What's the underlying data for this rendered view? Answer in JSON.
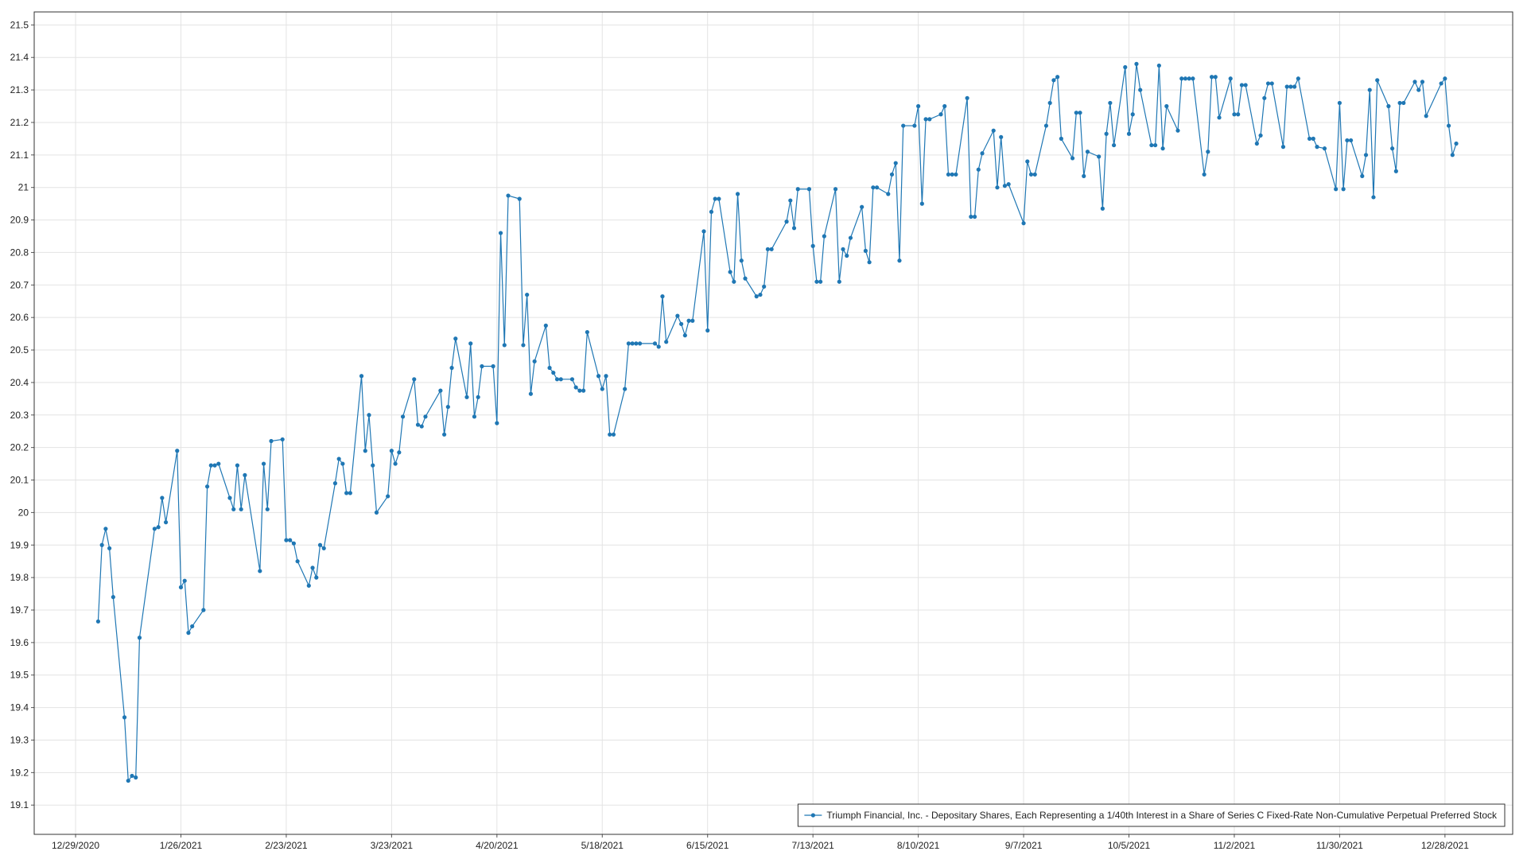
{
  "chart_data": {
    "type": "line",
    "x": [
      "1/4/2021",
      "1/5/2021",
      "1/6/2021",
      "1/7/2021",
      "1/8/2021",
      "1/11/2021",
      "1/12/2021",
      "1/13/2021",
      "1/14/2021",
      "1/15/2021",
      "1/19/2021",
      "1/20/2021",
      "1/21/2021",
      "1/22/2021",
      "1/25/2021",
      "1/26/2021",
      "1/27/2021",
      "1/28/2021",
      "1/29/2021",
      "2/1/2021",
      "2/2/2021",
      "2/3/2021",
      "2/4/2021",
      "2/5/2021",
      "2/8/2021",
      "2/9/2021",
      "2/10/2021",
      "2/11/2021",
      "2/12/2021",
      "2/16/2021",
      "2/17/2021",
      "2/18/2021",
      "2/19/2021",
      "2/22/2021",
      "2/23/2021",
      "2/24/2021",
      "2/25/2021",
      "2/26/2021",
      "3/1/2021",
      "3/2/2021",
      "3/3/2021",
      "3/4/2021",
      "3/5/2021",
      "3/8/2021",
      "3/9/2021",
      "3/10/2021",
      "3/11/2021",
      "3/12/2021",
      "3/15/2021",
      "3/16/2021",
      "3/17/2021",
      "3/18/2021",
      "3/19/2021",
      "3/22/2021",
      "3/23/2021",
      "3/24/2021",
      "3/25/2021",
      "3/26/2021",
      "3/29/2021",
      "3/30/2021",
      "3/31/2021",
      "4/1/2021",
      "4/5/2021",
      "4/6/2021",
      "4/7/2021",
      "4/8/2021",
      "4/9/2021",
      "4/12/2021",
      "4/13/2021",
      "4/14/2021",
      "4/15/2021",
      "4/16/2021",
      "4/19/2021",
      "4/20/2021",
      "4/21/2021",
      "4/22/2021",
      "4/23/2021",
      "4/26/2021",
      "4/27/2021",
      "4/28/2021",
      "4/29/2021",
      "4/30/2021",
      "5/3/2021",
      "5/4/2021",
      "5/5/2021",
      "5/6/2021",
      "5/7/2021",
      "5/10/2021",
      "5/11/2021",
      "5/12/2021",
      "5/13/2021",
      "5/14/2021",
      "5/17/2021",
      "5/18/2021",
      "5/19/2021",
      "5/20/2021",
      "5/21/2021",
      "5/24/2021",
      "5/25/2021",
      "5/26/2021",
      "5/27/2021",
      "5/28/2021",
      "6/1/2021",
      "6/2/2021",
      "6/3/2021",
      "6/4/2021",
      "6/7/2021",
      "6/8/2021",
      "6/9/2021",
      "6/10/2021",
      "6/11/2021",
      "6/14/2021",
      "6/15/2021",
      "6/16/2021",
      "6/17/2021",
      "6/18/2021",
      "6/21/2021",
      "6/22/2021",
      "6/23/2021",
      "6/24/2021",
      "6/25/2021",
      "6/28/2021",
      "6/29/2021",
      "6/30/2021",
      "7/1/2021",
      "7/2/2021",
      "7/6/2021",
      "7/7/2021",
      "7/8/2021",
      "7/9/2021",
      "7/12/2021",
      "7/13/2021",
      "7/14/2021",
      "7/15/2021",
      "7/16/2021",
      "7/19/2021",
      "7/20/2021",
      "7/21/2021",
      "7/22/2021",
      "7/23/2021",
      "7/26/2021",
      "7/27/2021",
      "7/28/2021",
      "7/29/2021",
      "7/30/2021",
      "8/2/2021",
      "8/3/2021",
      "8/4/2021",
      "8/5/2021",
      "8/6/2021",
      "8/9/2021",
      "8/10/2021",
      "8/11/2021",
      "8/12/2021",
      "8/13/2021",
      "8/16/2021",
      "8/17/2021",
      "8/18/2021",
      "8/19/2021",
      "8/20/2021",
      "8/23/2021",
      "8/24/2021",
      "8/25/2021",
      "8/26/2021",
      "8/27/2021",
      "8/30/2021",
      "8/31/2021",
      "9/1/2021",
      "9/2/2021",
      "9/3/2021",
      "9/7/2021",
      "9/8/2021",
      "9/9/2021",
      "9/10/2021",
      "9/13/2021",
      "9/14/2021",
      "9/15/2021",
      "9/16/2021",
      "9/17/2021",
      "9/20/2021",
      "9/21/2021",
      "9/22/2021",
      "9/23/2021",
      "9/24/2021",
      "9/27/2021",
      "9/28/2021",
      "9/29/2021",
      "9/30/2021",
      "10/1/2021",
      "10/4/2021",
      "10/5/2021",
      "10/6/2021",
      "10/7/2021",
      "10/8/2021",
      "10/11/2021",
      "10/12/2021",
      "10/13/2021",
      "10/14/2021",
      "10/15/2021",
      "10/18/2021",
      "10/19/2021",
      "10/20/2021",
      "10/21/2021",
      "10/22/2021",
      "10/25/2021",
      "10/26/2021",
      "10/27/2021",
      "10/28/2021",
      "10/29/2021",
      "11/1/2021",
      "11/2/2021",
      "11/3/2021",
      "11/4/2021",
      "11/5/2021",
      "11/8/2021",
      "11/9/2021",
      "11/10/2021",
      "11/11/2021",
      "11/12/2021",
      "11/15/2021",
      "11/16/2021",
      "11/17/2021",
      "11/18/2021",
      "11/19/2021",
      "11/22/2021",
      "11/23/2021",
      "11/24/2021",
      "11/26/2021",
      "11/29/2021",
      "11/30/2021",
      "12/1/2021",
      "12/2/2021",
      "12/3/2021",
      "12/6/2021",
      "12/7/2021",
      "12/8/2021",
      "12/9/2021",
      "12/10/2021",
      "12/13/2021",
      "12/14/2021",
      "12/15/2021",
      "12/16/2021",
      "12/17/2021",
      "12/20/2021",
      "12/21/2021",
      "12/22/2021",
      "12/23/2021",
      "12/27/2021",
      "12/28/2021",
      "12/29/2021",
      "12/30/2021",
      "12/31/2021"
    ],
    "series": [
      {
        "name": "Triumph Financial, Inc. - Depositary Shares, Each Representing a 1/40th Interest in a Share of Series C Fixed-Rate Non-Cumulative Perpetual Preferred Stock",
        "color": "#1f77b4",
        "values": [
          19.665,
          19.9,
          19.95,
          19.89,
          19.74,
          19.37,
          19.175,
          19.19,
          19.185,
          19.615,
          19.95,
          19.955,
          20.045,
          19.97,
          20.19,
          19.77,
          19.79,
          19.63,
          19.65,
          19.7,
          20.08,
          20.145,
          20.145,
          20.15,
          20.045,
          20.01,
          20.145,
          20.01,
          20.115,
          19.82,
          20.15,
          20.01,
          20.22,
          20.225,
          19.915,
          19.915,
          19.905,
          19.85,
          19.775,
          19.83,
          19.8,
          19.9,
          19.89,
          20.09,
          20.165,
          20.15,
          20.06,
          20.06,
          20.42,
          20.19,
          20.3,
          20.145,
          20.0,
          20.05,
          20.19,
          20.15,
          20.185,
          20.295,
          20.41,
          20.27,
          20.265,
          20.295,
          20.375,
          20.24,
          20.325,
          20.445,
          20.535,
          20.355,
          20.52,
          20.295,
          20.355,
          20.45,
          20.45,
          20.275,
          20.86,
          20.515,
          20.975,
          20.965,
          20.515,
          20.67,
          20.365,
          20.465,
          20.575,
          20.445,
          20.43,
          20.41,
          20.41,
          20.41,
          20.385,
          20.375,
          20.375,
          20.555,
          20.42,
          20.38,
          20.42,
          20.24,
          20.24,
          20.38,
          20.52,
          20.52,
          20.52,
          20.52,
          20.52,
          20.51,
          20.665,
          20.525,
          20.605,
          20.58,
          20.545,
          20.59,
          20.59,
          20.865,
          20.56,
          20.925,
          20.965,
          20.965,
          20.74,
          20.71,
          20.98,
          20.775,
          20.72,
          20.665,
          20.67,
          20.695,
          20.81,
          20.81,
          20.895,
          20.96,
          20.875,
          20.995,
          20.995,
          20.82,
          20.71,
          20.71,
          20.85,
          20.995,
          20.71,
          20.81,
          20.79,
          20.845,
          20.94,
          20.805,
          20.77,
          21.0,
          21.0,
          20.98,
          21.04,
          21.075,
          20.775,
          21.19,
          21.19,
          21.25,
          20.95,
          21.21,
          21.21,
          21.225,
          21.25,
          21.04,
          21.04,
          21.04,
          21.275,
          20.91,
          20.91,
          21.055,
          21.105,
          21.175,
          21.0,
          21.155,
          21.005,
          21.01,
          20.89,
          21.08,
          21.04,
          21.04,
          21.19,
          21.26,
          21.33,
          21.34,
          21.15,
          21.09,
          21.23,
          21.23,
          21.035,
          21.11,
          21.095,
          20.935,
          21.165,
          21.26,
          21.13,
          21.37,
          21.165,
          21.225,
          21.38,
          21.3,
          21.13,
          21.13,
          21.375,
          21.12,
          21.25,
          21.175,
          21.335,
          21.335,
          21.335,
          21.335,
          21.04,
          21.11,
          21.34,
          21.34,
          21.215,
          21.335,
          21.225,
          21.225,
          21.315,
          21.315,
          21.135,
          21.16,
          21.275,
          21.32,
          21.32,
          21.125,
          21.31,
          21.31,
          21.31,
          21.335,
          21.15,
          21.15,
          21.125,
          21.12,
          20.995,
          21.26,
          20.995,
          21.145,
          21.145,
          21.035,
          21.1,
          21.3,
          20.97,
          21.33,
          21.25,
          21.12,
          21.05,
          21.26,
          21.26,
          21.325,
          21.3,
          21.325,
          21.22,
          21.32,
          21.335,
          21.19,
          21.1,
          21.135
        ]
      }
    ],
    "xlim": [
      "12/18/2020",
      "1/15/2022"
    ],
    "xticks": [
      "12/29/2020",
      "1/26/2021",
      "2/23/2021",
      "3/23/2021",
      "4/20/2021",
      "5/18/2021",
      "6/15/2021",
      "7/13/2021",
      "8/10/2021",
      "9/7/2021",
      "10/5/2021",
      "11/2/2021",
      "11/30/2021",
      "12/28/2021"
    ],
    "ylim": [
      19.01,
      21.54
    ],
    "yticks": [
      19.1,
      19.2,
      19.3,
      19.4,
      19.5,
      19.6,
      19.7,
      19.8,
      19.9,
      20,
      20.1,
      20.2,
      20.3,
      20.4,
      20.5,
      20.6,
      20.7,
      20.8,
      20.9,
      21,
      21.1,
      21.2,
      21.3,
      21.4,
      21.5
    ],
    "grid": true,
    "markers": true,
    "legend": "lower right"
  }
}
